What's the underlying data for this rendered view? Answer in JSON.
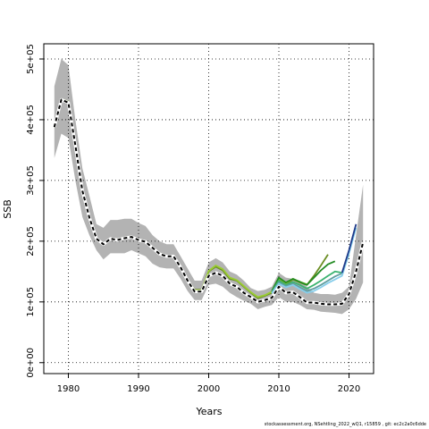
{
  "chart_data": {
    "type": "line",
    "title": "",
    "xlabel": "Years",
    "ylabel": "SSB",
    "xlim": [
      1976.5,
      2023.5
    ],
    "ylim": [
      -18000,
      525000
    ],
    "grid": true,
    "x_ticks": [
      1980,
      1990,
      2000,
      2010,
      2020
    ],
    "y_ticks": [
      0,
      100000,
      200000,
      300000,
      400000,
      500000
    ],
    "y_tick_labels": [
      "0e+00",
      "1e+05",
      "2e+05",
      "3e+05",
      "4e+05",
      "5e+05"
    ],
    "band": {
      "x": [
        1978,
        1979,
        1980,
        1981,
        1982,
        1983,
        1984,
        1985,
        1986,
        1987,
        1988,
        1989,
        1990,
        1991,
        1992,
        1993,
        1994,
        1995,
        1996,
        1997,
        1998,
        1999,
        2000,
        2001,
        2002,
        2003,
        2004,
        2005,
        2006,
        2007,
        2008,
        2009,
        2010,
        2011,
        2012,
        2013,
        2014,
        2015,
        2016,
        2017,
        2018,
        2019,
        2020,
        2021,
        2022
      ],
      "upper": [
        455000,
        500000,
        490000,
        400000,
        320000,
        275000,
        228000,
        222000,
        235000,
        235000,
        237000,
        237000,
        230000,
        225000,
        210000,
        200000,
        195000,
        195000,
        175000,
        155000,
        135000,
        135000,
        165000,
        172000,
        165000,
        150000,
        145000,
        135000,
        123000,
        118000,
        120000,
        125000,
        148000,
        140000,
        138000,
        135000,
        125000,
        115000,
        113000,
        113000,
        112000,
        115000,
        125000,
        210000,
        293000
      ],
      "lower": [
        337000,
        377000,
        370000,
        300000,
        240000,
        210000,
        185000,
        170000,
        180000,
        180000,
        180000,
        185000,
        180000,
        175000,
        163000,
        157000,
        155000,
        155000,
        138000,
        118000,
        103000,
        103000,
        128000,
        130000,
        125000,
        115000,
        108000,
        102000,
        97000,
        88000,
        92000,
        95000,
        108000,
        100000,
        100000,
        95000,
        88000,
        87000,
        84000,
        83000,
        82000,
        80000,
        88000,
        105000,
        132000
      ]
    },
    "series": [
      {
        "color": "#6B8E23",
        "x": [
          1978,
          1979,
          1980,
          1981,
          1982,
          1983,
          1984,
          1985,
          1986,
          1987,
          1988,
          1989,
          1990,
          1991,
          1992,
          1993,
          1994,
          1995,
          1996,
          1997,
          1998,
          1999,
          2000,
          2001,
          2002,
          2003,
          2004,
          2005,
          2006,
          2007,
          2008,
          2009,
          2010,
          2011,
          2012,
          2013,
          2014,
          2015,
          2016,
          2017
        ],
        "y": [
          388000,
          434000,
          430000,
          360000,
          285000,
          240000,
          205000,
          195000,
          205000,
          203000,
          206000,
          208000,
          203000,
          200000,
          190000,
          180000,
          176000,
          176000,
          158000,
          136000,
          120000,
          120000,
          150000,
          158000,
          152000,
          138000,
          135000,
          125000,
          115000,
          106000,
          110000,
          115000,
          138000,
          129000,
          137000,
          132000,
          128000,
          143000,
          160000,
          178000
        ]
      },
      {
        "color": "#9ACD32",
        "x": [
          1978,
          1979,
          1980,
          1981,
          1982,
          1983,
          1984,
          1985,
          1986,
          1987,
          1988,
          1989,
          1990,
          1991,
          1992,
          1993,
          1994,
          1995,
          1996,
          1997,
          1998,
          1999,
          2000,
          2001,
          2002,
          2003,
          2004,
          2005,
          2006,
          2007,
          2008,
          2009,
          2010,
          2011,
          2012,
          2013,
          2014
        ],
        "y": [
          390000,
          433000,
          428000,
          358000,
          283000,
          239000,
          204000,
          196000,
          204000,
          202000,
          205000,
          207000,
          202000,
          199000,
          189000,
          179000,
          175000,
          175000,
          157000,
          135000,
          119000,
          119000,
          151000,
          160000,
          154000,
          140000,
          136000,
          126000,
          116000,
          108000,
          111000,
          117000,
          139000,
          131000,
          138000,
          133000,
          129000
        ]
      },
      {
        "color": "#228B22",
        "x": [
          2009,
          2010,
          2011,
          2012,
          2013,
          2014,
          2015,
          2016,
          2017,
          2018
        ],
        "y": [
          118000,
          140000,
          132000,
          138000,
          133000,
          128000,
          140000,
          152000,
          162000,
          167000
        ]
      },
      {
        "color": "#3CB371",
        "x": [
          2009,
          2010,
          2011,
          2012,
          2013,
          2014,
          2015,
          2016,
          2017,
          2018,
          2019
        ],
        "y": [
          116000,
          135000,
          128000,
          133000,
          128000,
          122000,
          128000,
          135000,
          143000,
          150000,
          148000
        ]
      },
      {
        "color": "#5F9EA0",
        "x": [
          2009,
          2010,
          2011,
          2012,
          2013,
          2014,
          2015,
          2016,
          2017,
          2018,
          2019,
          2020
        ],
        "y": [
          115000,
          132000,
          126000,
          130000,
          124000,
          118000,
          122000,
          128000,
          135000,
          142000,
          147000,
          178000
        ]
      },
      {
        "color": "#87CEEB",
        "x": [
          2009,
          2010,
          2011,
          2012,
          2013,
          2014,
          2015,
          2016,
          2017,
          2018,
          2019,
          2020,
          2021
        ],
        "y": [
          114000,
          130000,
          124000,
          128000,
          121000,
          115000,
          118000,
          124000,
          131000,
          137000,
          143000,
          180000,
          222000
        ]
      },
      {
        "color": "#1E3A8A",
        "x": [
          2019,
          2020,
          2021
        ],
        "y": [
          148000,
          185000,
          228000
        ]
      },
      {
        "color": "#000000",
        "dashed": true,
        "x": [
          1978,
          1979,
          1980,
          1981,
          1982,
          1983,
          1984,
          1985,
          1986,
          1987,
          1988,
          1989,
          1990,
          1991,
          1992,
          1993,
          1994,
          1995,
          1996,
          1997,
          1998,
          1999,
          2000,
          2001,
          2002,
          2003,
          2004,
          2005,
          2006,
          2007,
          2008,
          2009,
          2010,
          2011,
          2012,
          2013,
          2014,
          2015,
          2016,
          2017,
          2018,
          2019,
          2020,
          2021,
          2022
        ],
        "y": [
          388000,
          433000,
          428000,
          358000,
          283000,
          239000,
          204000,
          195000,
          204000,
          202000,
          205000,
          207000,
          202000,
          199000,
          189000,
          179000,
          175000,
          175000,
          157000,
          135000,
          117000,
          117000,
          143000,
          148000,
          143000,
          130000,
          125000,
          115000,
          108000,
          100000,
          103000,
          107000,
          125000,
          115000,
          116000,
          108000,
          99000,
          99000,
          97000,
          96000,
          96000,
          97000,
          113000,
          150000,
          198000
        ]
      }
    ]
  },
  "footer": {
    "text": "stockassessment.org, NSehtling_2022_wQ1, r15859 , git: ec2c2a0c6dde"
  }
}
